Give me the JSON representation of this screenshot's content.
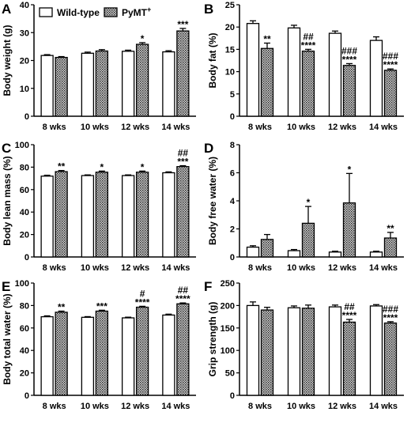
{
  "legend": [
    {
      "label": "Wild-type",
      "pattern": "white"
    },
    {
      "label": "PyMT",
      "sup": "+",
      "pattern": "dotted"
    }
  ],
  "chart_data": [
    {
      "type": "bar",
      "panel": "A",
      "ylabel": "Body weight (g)",
      "ylim": [
        0,
        40
      ],
      "yticks": [
        0,
        10,
        20,
        30,
        40
      ],
      "categories": [
        "8 wks",
        "10 wks",
        "12 wks",
        "14 wks"
      ],
      "series": [
        {
          "name": "Wild-type",
          "values": [
            21.8,
            22.6,
            23.3,
            23.1
          ],
          "err": [
            0.3,
            0.4,
            0.4,
            0.4
          ]
        },
        {
          "name": "PyMT+",
          "values": [
            21.1,
            23.4,
            25.8,
            30.6
          ],
          "err": [
            0.3,
            0.5,
            0.6,
            0.9
          ],
          "annotations": [
            "",
            "",
            "*",
            "***"
          ]
        }
      ]
    },
    {
      "type": "bar",
      "panel": "B",
      "ylabel": "Body fat (%)",
      "ylim": [
        0,
        25
      ],
      "yticks": [
        0,
        5,
        10,
        15,
        20,
        25
      ],
      "categories": [
        "8 wks",
        "10 wks",
        "12 wks",
        "14 wks"
      ],
      "series": [
        {
          "name": "Wild-type",
          "values": [
            20.8,
            19.8,
            18.6,
            17.0
          ],
          "err": [
            0.6,
            0.6,
            0.5,
            0.8
          ]
        },
        {
          "name": "PyMT+",
          "values": [
            15.2,
            14.6,
            11.4,
            10.3
          ],
          "err": [
            1.2,
            0.4,
            0.4,
            0.3
          ],
          "annotations": [
            "**",
            "##\n****",
            "###\n****",
            "###\n****"
          ]
        }
      ]
    },
    {
      "type": "bar",
      "panel": "C",
      "ylabel": "Body lean mass (%)",
      "ylim": [
        0,
        100
      ],
      "yticks": [
        0,
        20,
        40,
        60,
        80,
        100
      ],
      "categories": [
        "8 wks",
        "10 wks",
        "12 wks",
        "14 wks"
      ],
      "series": [
        {
          "name": "Wild-type",
          "values": [
            72,
            72.5,
            72.5,
            75
          ],
          "err": [
            0.8,
            0.6,
            0.6,
            0.8
          ]
        },
        {
          "name": "PyMT+",
          "values": [
            76,
            75.5,
            75.5,
            80.5
          ],
          "err": [
            1.0,
            1.0,
            1.0,
            0.8
          ],
          "annotations": [
            "**",
            "*",
            "*",
            "##\n***"
          ]
        }
      ]
    },
    {
      "type": "bar",
      "panel": "D",
      "ylabel": "Body free water (%)",
      "ylim": [
        0,
        8
      ],
      "yticks": [
        0,
        2,
        4,
        6,
        8
      ],
      "categories": [
        "8 wks",
        "10 wks",
        "12 wks",
        "14 wks"
      ],
      "series": [
        {
          "name": "Wild-type",
          "values": [
            0.7,
            0.45,
            0.35,
            0.35
          ],
          "err": [
            0.1,
            0.08,
            0.06,
            0.06
          ]
        },
        {
          "name": "PyMT+",
          "values": [
            1.25,
            2.4,
            3.85,
            1.35
          ],
          "err": [
            0.35,
            1.2,
            2.1,
            0.4
          ],
          "annotations": [
            "",
            "*",
            "*",
            "**"
          ]
        }
      ]
    },
    {
      "type": "bar",
      "panel": "E",
      "ylabel": "Body total water (%)",
      "ylim": [
        0,
        100
      ],
      "yticks": [
        0,
        20,
        40,
        60,
        80,
        100
      ],
      "categories": [
        "8 wks",
        "10 wks",
        "12 wks",
        "14 wks"
      ],
      "series": [
        {
          "name": "Wild-type",
          "values": [
            70,
            69.5,
            69,
            71.5
          ],
          "err": [
            0.8,
            0.6,
            0.6,
            0.8
          ]
        },
        {
          "name": "PyMT+",
          "values": [
            74,
            75,
            78.5,
            81.5
          ],
          "err": [
            1.0,
            0.8,
            0.8,
            0.8
          ],
          "annotations": [
            "**",
            "***",
            "#\n****",
            "##\n****"
          ]
        }
      ]
    },
    {
      "type": "bar",
      "panel": "F",
      "ylabel": "Grip strength (g)",
      "ylim": [
        0,
        250
      ],
      "yticks": [
        0,
        50,
        100,
        150,
        200,
        250
      ],
      "categories": [
        "8 wks",
        "10 wks",
        "12 wks",
        "14 wks"
      ],
      "series": [
        {
          "name": "Wild-type",
          "values": [
            200,
            195,
            197,
            199
          ],
          "err": [
            8,
            4,
            4,
            3
          ]
        },
        {
          "name": "PyMT+",
          "values": [
            190,
            194,
            163,
            161
          ],
          "err": [
            6,
            7,
            6,
            3
          ],
          "annotations": [
            "",
            "",
            "##\n****",
            "###\n****"
          ]
        }
      ]
    }
  ]
}
